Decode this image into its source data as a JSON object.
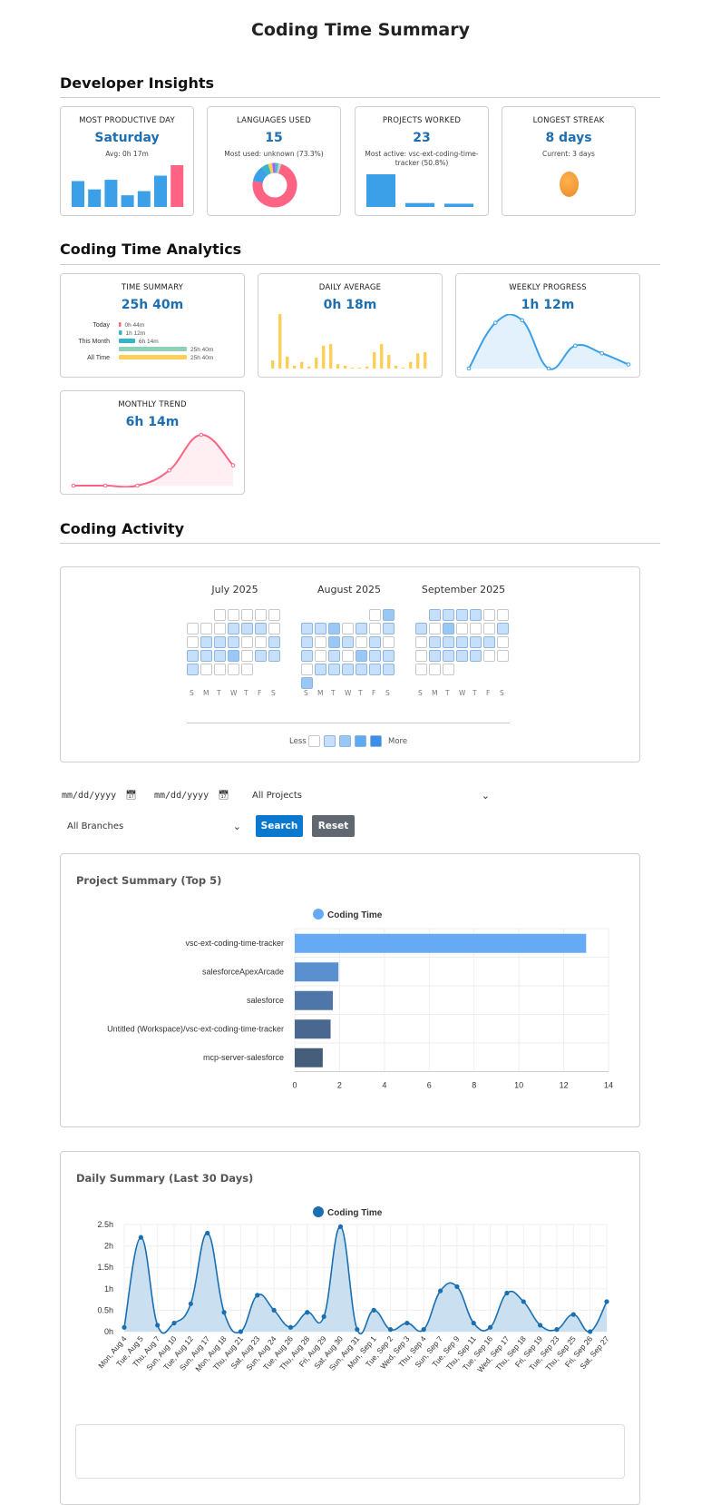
{
  "page_title": "Coding Time Summary",
  "sections": {
    "insights": "Developer Insights",
    "analytics": "Coding Time Analytics",
    "activity": "Coding Activity"
  },
  "insights": {
    "productive_day": {
      "label": "MOST PRODUCTIVE DAY",
      "value": "Saturday",
      "sub": "Avg: 0h 17m",
      "bars": [
        0.62,
        0.42,
        0.65,
        0.28,
        0.38,
        0.75,
        1.0
      ],
      "bar_colors": [
        "#3ba0e8",
        "#3ba0e8",
        "#3ba0e8",
        "#3ba0e8",
        "#3ba0e8",
        "#3ba0e8",
        "#ff6384"
      ]
    },
    "languages": {
      "label": "LANGUAGES USED",
      "value": "15",
      "sub": "Most used: unknown (73.3%)",
      "slices": [
        73.3,
        12,
        5,
        3,
        2.5,
        2.2,
        2
      ],
      "slice_colors": [
        "#ff6384",
        "#3ba0e8",
        "#36b4c8",
        "#ffce56",
        "#9966ff",
        "#4bc0c0",
        "#c9cbcf"
      ]
    },
    "projects": {
      "label": "PROJECTS WORKED",
      "value": "23",
      "sub": "Most active: vsc-ext-coding-time-tracker (50.8%)",
      "bars": [
        1.0,
        0.12,
        0.1
      ],
      "bar_color": "#3ba0e8"
    },
    "streak": {
      "label": "LONGEST STREAK",
      "value": "8 days",
      "sub": "Current: 3 days"
    }
  },
  "analytics": {
    "time_summary": {
      "label": "TIME SUMMARY",
      "value": "25h 40m",
      "rows": [
        {
          "name": "Today",
          "text": "0h 44m",
          "fraction": 0.03,
          "color": "#ff6384"
        },
        {
          "name": "",
          "text": "1h 12m",
          "fraction": 0.047,
          "color": "#36b4c8"
        },
        {
          "name": "This Month",
          "text": "6h 14m",
          "fraction": 0.24,
          "color": "#36b4c8"
        },
        {
          "name": "",
          "text": "25h 40m",
          "fraction": 1.0,
          "color": "#8ed1b8"
        },
        {
          "name": "All Time",
          "text": "25h 40m",
          "fraction": 1.0,
          "color": "#ffce56"
        }
      ]
    },
    "daily_average": {
      "label": "DAILY AVERAGE",
      "value": "0h 18m",
      "bars": [
        0.15,
        1.0,
        0.22,
        0.05,
        0.12,
        0.04,
        0.2,
        0.42,
        0.45,
        0.08,
        0.05,
        0.0,
        0.0,
        0.04,
        0.3,
        0.45,
        0.25,
        0.05,
        0.0,
        0.12,
        0.28,
        0.3
      ],
      "bar_color": "#ffce56"
    },
    "weekly_progress": {
      "label": "WEEKLY PROGRESS",
      "value": "1h 12m",
      "points": [
        0.0,
        0.9,
        0.95,
        0.0,
        0.45,
        0.3,
        0.08
      ],
      "color": "#3ba0e8"
    },
    "monthly_trend": {
      "label": "MONTHLY TREND",
      "value": "6h 14m",
      "points": [
        0.0,
        0.0,
        0.0,
        0.3,
        1.0,
        0.4
      ],
      "color": "#ff6384"
    }
  },
  "activity": {
    "months": [
      {
        "title": "July 2025",
        "start": 2,
        "days": [
          0,
          0,
          0,
          0,
          0,
          0,
          0,
          0,
          1,
          1,
          1,
          0,
          0,
          1,
          1,
          1,
          0,
          0,
          1,
          1,
          1,
          1,
          2,
          0,
          1,
          1,
          1,
          0,
          0,
          0,
          0
        ]
      },
      {
        "title": "August 2025",
        "start": 5,
        "days": [
          0,
          2,
          1,
          1,
          2,
          0,
          1,
          0,
          1,
          1,
          0,
          2,
          1,
          0,
          1,
          0,
          1,
          0,
          1,
          0,
          2,
          1,
          1,
          0,
          1,
          1,
          1,
          1,
          1,
          1,
          2
        ]
      },
      {
        "title": "September 2025",
        "start": 1,
        "days": [
          1,
          1,
          1,
          1,
          0,
          0,
          1,
          0,
          2,
          0,
          0,
          0,
          1,
          0,
          1,
          1,
          1,
          1,
          1,
          0,
          0,
          1,
          1,
          1,
          1,
          0,
          0,
          0,
          0,
          0
        ]
      }
    ],
    "day_letters": [
      "S",
      "M",
      "T",
      "W",
      "T",
      "F",
      "S"
    ],
    "legend_less": "Less",
    "legend_more": "More",
    "level_colors": [
      "#ffffff",
      "#c6e0fb",
      "#99c8f5",
      "#5eaaf0",
      "#3b8fe8"
    ]
  },
  "filters": {
    "start_date": "mm/dd/yyyy",
    "end_date": "mm/dd/yyyy",
    "project_select": "All Projects",
    "branch_select": "All Branches",
    "search_label": "Search",
    "reset_label": "Reset"
  },
  "project_panel": {
    "title": "Project Summary (Top 5)",
    "chart_data": {
      "type": "bar",
      "orientation": "horizontal",
      "legend": "Coding Time",
      "categories": [
        "vsc-ext-coding-time-tracker",
        "salesforceApexArcade",
        "salesforce",
        "Untitled (Workspace)/vsc-ext-coding-time-tracker",
        "mcp-server-salesforce"
      ],
      "values": [
        13.0,
        1.95,
        1.7,
        1.6,
        1.25
      ],
      "colors": [
        "#66aaf5",
        "#5a8fd0",
        "#4f76a8",
        "#4a6790",
        "#465e7a"
      ],
      "xlim": [
        0,
        14
      ],
      "xticks": [
        "0",
        "2",
        "4",
        "6",
        "8",
        "10",
        "12",
        "14"
      ],
      "grid": true
    }
  },
  "daily_panel": {
    "title": "Daily Summary (Last 30 Days)",
    "chart_data": {
      "type": "area",
      "legend": "Coding Time",
      "categories": [
        "Mon, Aug 4",
        "Tue, Aug 5",
        "Thu, Aug 7",
        "Sun, Aug 10",
        "Tue, Aug 12",
        "Sun, Aug 17",
        "Mon, Aug 18",
        "Thu, Aug 21",
        "Sat, Aug 23",
        "Sun, Aug 24",
        "Tue, Aug 26",
        "Thu, Aug 28",
        "Fri, Aug 29",
        "Sat, Aug 30",
        "Sun, Aug 31",
        "Mon, Sep 1",
        "Tue, Sep 2",
        "Wed, Sep 3",
        "Thu, Sep 4",
        "Sun, Sep 7",
        "Tue, Sep 9",
        "Thu, Sep 11",
        "Tue, Sep 16",
        "Wed, Sep 17",
        "Thu, Sep 18",
        "Fri, Sep 19",
        "Tue, Sep 23",
        "Thu, Sep 25",
        "Fri, Sep 26",
        "Sat, Sep 27"
      ],
      "values": [
        0.1,
        2.2,
        0.15,
        0.2,
        0.65,
        2.3,
        0.45,
        0.0,
        0.85,
        0.5,
        0.1,
        0.45,
        0.35,
        2.45,
        0.05,
        0.5,
        0.05,
        0.2,
        0.05,
        0.95,
        1.05,
        0.2,
        0.1,
        0.9,
        0.7,
        0.15,
        0.05,
        0.4,
        0.0,
        0.7
      ],
      "yticks": [
        "0h",
        "0.5h",
        "1h",
        "1.5h",
        "2h",
        "2.5h"
      ],
      "ylim": [
        0,
        2.5
      ],
      "color": "#1a6fb0",
      "fill": "#c4ddef",
      "grid": true
    }
  }
}
